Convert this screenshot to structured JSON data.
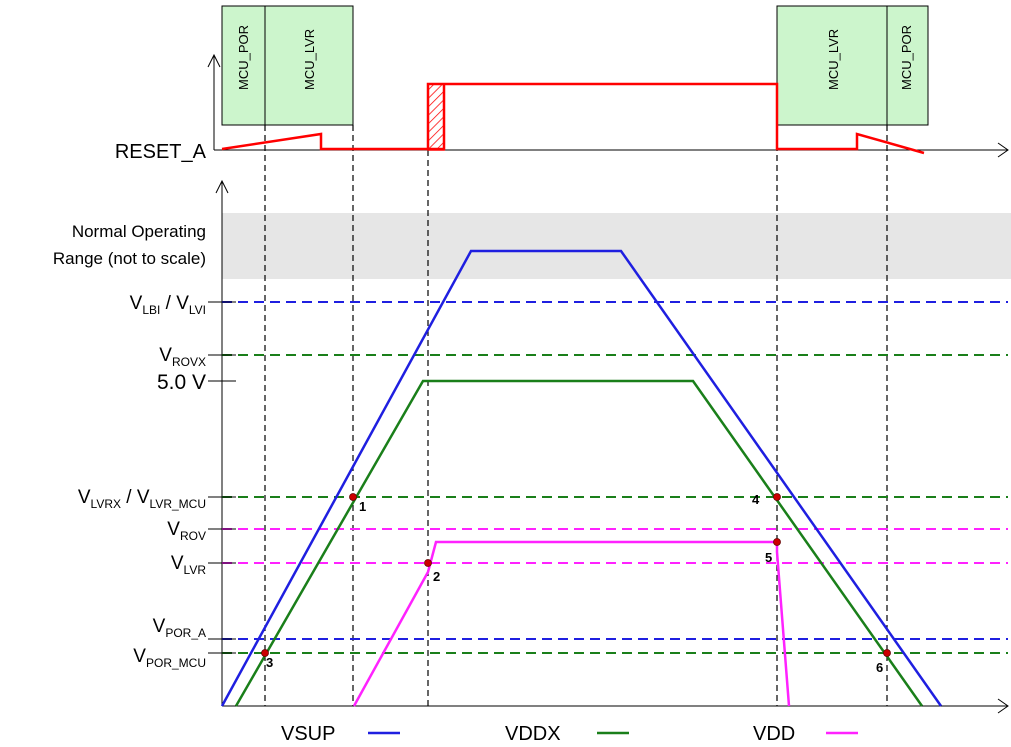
{
  "signals": {
    "reset": "RESET_A",
    "legend": [
      {
        "name": "VSUP",
        "color": "#1f1fe0"
      },
      {
        "name": "VDDX",
        "color": "#1a7f1a"
      },
      {
        "name": "VDD",
        "color": "#ff22ff"
      }
    ]
  },
  "boxes": {
    "left": [
      "MCU_POR",
      "MCU_LVR"
    ],
    "right": [
      "MCU_LVR",
      "MCU_POR"
    ]
  },
  "range_label": [
    "Normal Operating",
    "Range (not to scale)"
  ],
  "levels": {
    "lbi": {
      "main": "V",
      "sub1": "LBI",
      "mid": " / V",
      "sub2": "LVI"
    },
    "rovx": {
      "main": "V",
      "sub": "ROVX"
    },
    "five": "5.0 V",
    "lvrx": {
      "main": "V",
      "sub1": "LVRX",
      "mid": " / V",
      "sub2": "LVR_MCU"
    },
    "rov": {
      "main": "V",
      "sub": "ROV"
    },
    "lvr": {
      "main": "V",
      "sub": "LVR"
    },
    "por_a": {
      "main": "V",
      "sub": "POR_A"
    },
    "por_mcu": {
      "main": "V",
      "sub": "POR_MCU"
    }
  },
  "markers": [
    "1",
    "2",
    "3",
    "4",
    "5",
    "6"
  ],
  "colors": {
    "reset": "#ff0000",
    "vsup": "#1f1fe0",
    "vddx": "#1a7f1a",
    "vdd": "#ff22ff",
    "box_fill": "#ccf5cc",
    "range_fill": "#e6e6e6",
    "marker": "#cc0000"
  }
}
